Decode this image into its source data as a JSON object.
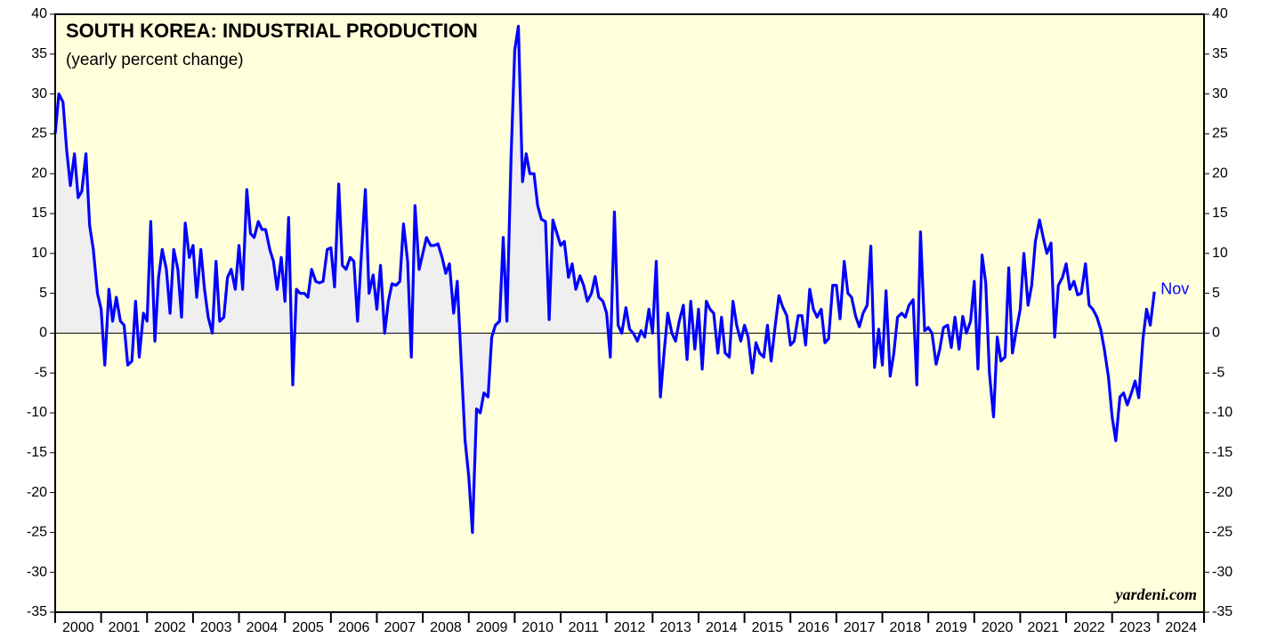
{
  "chart_data": {
    "type": "line",
    "title": "SOUTH KOREA: INDUSTRIAL PRODUCTION",
    "subtitle": "(yearly percent change)",
    "source": "yardeni.com",
    "last_label": "Nov",
    "xlim": [
      2000,
      2025
    ],
    "xticks": [
      {
        "value": 2000,
        "label": "2000"
      },
      {
        "value": 2001,
        "label": "2001"
      },
      {
        "value": 2002,
        "label": "2002"
      },
      {
        "value": 2003,
        "label": "2003"
      },
      {
        "value": 2004,
        "label": "2004"
      },
      {
        "value": 2005,
        "label": "2005"
      },
      {
        "value": 2006,
        "label": "2006"
      },
      {
        "value": 2007,
        "label": "2007"
      },
      {
        "value": 2008,
        "label": "2008"
      },
      {
        "value": 2009,
        "label": "2009"
      },
      {
        "value": 2010,
        "label": "2010"
      },
      {
        "value": 2011,
        "label": "2011"
      },
      {
        "value": 2012,
        "label": "2012"
      },
      {
        "value": 2013,
        "label": "2013"
      },
      {
        "value": 2014,
        "label": "2014"
      },
      {
        "value": 2015,
        "label": "2015"
      },
      {
        "value": 2016,
        "label": "2016"
      },
      {
        "value": 2017,
        "label": "2017"
      },
      {
        "value": 2018,
        "label": "2018"
      },
      {
        "value": 2019,
        "label": "2019"
      },
      {
        "value": 2020,
        "label": "2020"
      },
      {
        "value": 2021,
        "label": "2021"
      },
      {
        "value": 2022,
        "label": "2022"
      },
      {
        "value": 2023,
        "label": "2023"
      },
      {
        "value": 2024,
        "label": "2024"
      }
    ],
    "ylim": [
      -35,
      40
    ],
    "yticks": [
      -35,
      -30,
      -25,
      -20,
      -15,
      -10,
      -5,
      0,
      5,
      10,
      15,
      20,
      25,
      30,
      35,
      40
    ],
    "background": "#ffffdc",
    "shade_color": "#efefef",
    "shade_range": [
      2000,
      2012
    ],
    "x": [
      2000,
      2000.08,
      2000.17,
      2000.25,
      2000.33,
      2000.42,
      2000.5,
      2000.58,
      2000.67,
      2000.75,
      2000.83,
      2000.92,
      2001,
      2001.08,
      2001.17,
      2001.25,
      2001.33,
      2001.42,
      2001.5,
      2001.58,
      2001.67,
      2001.75,
      2001.83,
      2001.92,
      2002,
      2002.08,
      2002.17,
      2002.25,
      2002.33,
      2002.42,
      2002.5,
      2002.58,
      2002.67,
      2002.75,
      2002.83,
      2002.92,
      2003,
      2003.08,
      2003.17,
      2003.25,
      2003.33,
      2003.42,
      2003.5,
      2003.58,
      2003.67,
      2003.75,
      2003.83,
      2003.92,
      2004,
      2004.08,
      2004.17,
      2004.25,
      2004.33,
      2004.42,
      2004.5,
      2004.58,
      2004.67,
      2004.75,
      2004.83,
      2004.92,
      2005,
      2005.08,
      2005.17,
      2005.25,
      2005.33,
      2005.42,
      2005.5,
      2005.58,
      2005.67,
      2005.75,
      2005.83,
      2005.92,
      2006,
      2006.08,
      2006.17,
      2006.25,
      2006.33,
      2006.42,
      2006.5,
      2006.58,
      2006.67,
      2006.75,
      2006.83,
      2006.92,
      2007,
      2007.08,
      2007.17,
      2007.25,
      2007.33,
      2007.42,
      2007.5,
      2007.58,
      2007.67,
      2007.75,
      2007.83,
      2007.92,
      2008,
      2008.08,
      2008.17,
      2008.25,
      2008.33,
      2008.42,
      2008.5,
      2008.58,
      2008.67,
      2008.75,
      2008.83,
      2008.92,
      2009,
      2009.08,
      2009.17,
      2009.25,
      2009.33,
      2009.42,
      2009.5,
      2009.58,
      2009.67,
      2009.75,
      2009.83,
      2009.92,
      2010,
      2010.08,
      2010.17,
      2010.25,
      2010.33,
      2010.42,
      2010.5,
      2010.58,
      2010.67,
      2010.75,
      2010.83,
      2010.92,
      2011,
      2011.08,
      2011.17,
      2011.25,
      2011.33,
      2011.42,
      2011.5,
      2011.58,
      2011.67,
      2011.75,
      2011.83,
      2011.92,
      2012,
      2012.08,
      2012.17,
      2012.25,
      2012.33,
      2012.42,
      2012.5,
      2012.58,
      2012.67,
      2012.75,
      2012.83,
      2012.92,
      2013,
      2013.08,
      2013.17,
      2013.25,
      2013.33,
      2013.42,
      2013.5,
      2013.58,
      2013.67,
      2013.75,
      2013.83,
      2013.92,
      2014,
      2014.08,
      2014.17,
      2014.25,
      2014.33,
      2014.42,
      2014.5,
      2014.58,
      2014.67,
      2014.75,
      2014.83,
      2014.92,
      2015,
      2015.08,
      2015.17,
      2015.25,
      2015.33,
      2015.42,
      2015.5,
      2015.58,
      2015.67,
      2015.75,
      2015.83,
      2015.92,
      2016,
      2016.08,
      2016.17,
      2016.25,
      2016.33,
      2016.42,
      2016.5,
      2016.58,
      2016.67,
      2016.75,
      2016.83,
      2016.92,
      2017,
      2017.08,
      2017.17,
      2017.25,
      2017.33,
      2017.42,
      2017.5,
      2017.58,
      2017.67,
      2017.75,
      2017.83,
      2017.92,
      2018,
      2018.08,
      2018.17,
      2018.25,
      2018.33,
      2018.42,
      2018.5,
      2018.58,
      2018.67,
      2018.75,
      2018.83,
      2018.92,
      2019,
      2019.08,
      2019.17,
      2019.25,
      2019.33,
      2019.42,
      2019.5,
      2019.58,
      2019.67,
      2019.75,
      2019.83,
      2019.92,
      2020,
      2020.08,
      2020.17,
      2020.25,
      2020.33,
      2020.42,
      2020.5,
      2020.58,
      2020.67,
      2020.75,
      2020.83,
      2020.92,
      2021,
      2021.08,
      2021.17,
      2021.25,
      2021.33,
      2021.42,
      2021.5,
      2021.58,
      2021.67,
      2021.75,
      2021.83,
      2021.92,
      2022,
      2022.08,
      2022.17,
      2022.25,
      2022.33,
      2022.42,
      2022.5,
      2022.58,
      2022.67,
      2022.75,
      2022.83,
      2022.92,
      2023,
      2023.08,
      2023.17,
      2023.25,
      2023.33,
      2023.42,
      2023.5,
      2023.58,
      2023.67,
      2023.75,
      2023.83,
      2023.92
    ],
    "series": [
      {
        "color": "#0000ff",
        "values": [
          25,
          30,
          29,
          23,
          18.5,
          22.5,
          17,
          17.8,
          22.5,
          13.5,
          10.5,
          5,
          3,
          -4,
          5.5,
          1.5,
          4.5,
          1.5,
          1,
          -4,
          -3.5,
          4,
          -3,
          2.5,
          1.5,
          14,
          -1,
          7,
          10.5,
          8,
          2.5,
          10.5,
          8,
          2,
          13.8,
          9.5,
          11,
          4.5,
          10.5,
          5.5,
          2,
          0,
          9,
          1.5,
          2,
          7,
          8,
          5.5,
          11,
          5.5,
          18,
          12.5,
          12,
          14,
          13,
          13,
          10.5,
          9,
          5.5,
          9.5,
          4,
          14.5,
          -6.5,
          5.5,
          5,
          5,
          4.5,
          8,
          6.5,
          6.3,
          6.5,
          10.5,
          10.7,
          5.8,
          18.7,
          8.5,
          8,
          9.5,
          9,
          1.5,
          10.5,
          18,
          5,
          7.3,
          3,
          8.5,
          0,
          4,
          6.2,
          6,
          6.5,
          13.7,
          9,
          -3,
          16,
          8,
          10,
          12,
          11,
          11,
          11.2,
          9.5,
          7.5,
          8.7,
          2.5,
          6.5,
          -3,
          -13.5,
          -18,
          -25,
          -9.5,
          -10,
          -7.5,
          -8,
          -0.5,
          1,
          1.5,
          12,
          1.5,
          22,
          35.5,
          38.5,
          19,
          22.5,
          20,
          20,
          16,
          14.3,
          14,
          1.7,
          14.2,
          12.5,
          11,
          11.5,
          7,
          8.7,
          5.5,
          7.2,
          6,
          4,
          5,
          7.1,
          4.5,
          4,
          2.5,
          -3,
          15.2,
          1,
          0,
          3.2,
          0.5,
          0,
          -1,
          0.3,
          -0.5,
          3,
          0,
          9,
          -8,
          -2.5,
          2.5,
          0,
          -1,
          1.5,
          3.5,
          -3.3,
          4,
          -2,
          3,
          -4.5,
          4,
          3,
          2.5,
          -2.5,
          2,
          -2.5,
          -3,
          4,
          1,
          -1,
          1,
          -0.5,
          -5,
          -1.2,
          -2.5,
          -3,
          1,
          -3.5,
          1,
          4.7,
          3.3,
          2.2,
          -1.5,
          -1,
          2.2,
          2.2,
          -1.5,
          5.5,
          3,
          2,
          3,
          -1.2,
          -0.7,
          6,
          6,
          1.8,
          9,
          5,
          4.5,
          2.1,
          0.8,
          2.5,
          3.5,
          10.9,
          -4.3,
          0.5,
          -4,
          5.3,
          -5.4,
          -2.5,
          2,
          2.5,
          2,
          3.5,
          4.2,
          -6.5,
          12.7,
          0.3,
          0.7,
          0,
          -3.9,
          -2,
          0.7,
          1,
          -1.8,
          2,
          -2,
          2.1,
          0,
          1.5,
          6.5,
          -4.5,
          9.8,
          6.3,
          -5,
          -10.5,
          -0.5,
          -3.5,
          -3,
          8.2,
          -2.5,
          0.5,
          3,
          10,
          3.5,
          6,
          11.5,
          14.2,
          12,
          10,
          11.3,
          -0.5,
          6,
          7,
          8.7,
          5.5,
          6.5,
          4.8,
          5,
          8.7,
          3.5,
          3,
          2,
          0.5,
          -2,
          -5.5,
          -10.5,
          -13.5,
          -8,
          -7.5,
          -9,
          -7.5,
          -6,
          -8.1,
          -0.8,
          3,
          1,
          5.2
        ]
      }
    ]
  }
}
